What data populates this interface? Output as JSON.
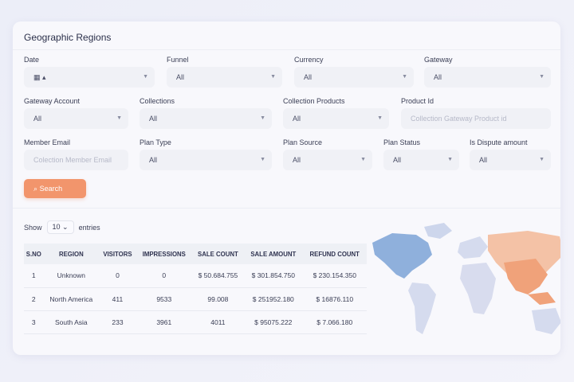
{
  "title": "Geographic Regions",
  "filters": {
    "date": {
      "label": "Date",
      "value": "▴"
    },
    "funnel": {
      "label": "Funnel",
      "value": "All"
    },
    "currency": {
      "label": "Currency",
      "value": "All"
    },
    "gateway": {
      "label": "Gateway",
      "value": "All"
    },
    "gateway_account": {
      "label": "Gateway Account",
      "value": "All"
    },
    "collections": {
      "label": "Collections",
      "value": "All"
    },
    "collection_products": {
      "label": "Collection Products",
      "value": "All"
    },
    "product_id": {
      "label": "Product Id",
      "placeholder": "Collection Gateway Product id"
    },
    "member_email": {
      "label": "Member Email",
      "placeholder": "Colection Member Email"
    },
    "plan_type": {
      "label": "Plan Type",
      "value": "All"
    },
    "plan_source": {
      "label": "Plan Source",
      "value": "All"
    },
    "plan_status": {
      "label": "Plan Status",
      "value": "All"
    },
    "is_dispute": {
      "label": "Is Dispute amount",
      "value": "All"
    }
  },
  "search_label": "Search",
  "entries": {
    "show": "Show",
    "value": "10",
    "suffix": "entries"
  },
  "table": {
    "headers": [
      "S.NO",
      "REGION",
      "VISITORS",
      "IMPRESSIONS",
      "SALE COUNT",
      "SALE AMOUNT",
      "REFUND COUNT"
    ],
    "rows": [
      [
        "1",
        "Unknown",
        "0",
        "0",
        "$ 50.684.755",
        "$ 301.854.750",
        "$ 230.154.350"
      ],
      [
        "2",
        "North America",
        "411",
        "9533",
        "99.008",
        "$ 251952.180",
        "$ 16876.110"
      ],
      [
        "3",
        "South Asia",
        "233",
        "3961",
        "4011",
        "$ 95075.222",
        "$ 7.066.180"
      ]
    ]
  },
  "colors": {
    "accent": "#f2956c",
    "map_blue": "#8fb0dc",
    "map_orange": "#f0a27a"
  }
}
